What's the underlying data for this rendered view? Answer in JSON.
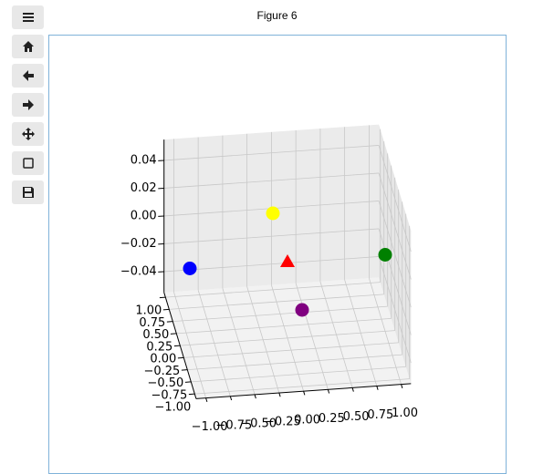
{
  "window": {
    "title": "Figure 6"
  },
  "chart_data": {
    "type": "scatter3d",
    "points": {
      "x": [
        -1,
        0,
        1,
        0,
        0
      ],
      "y": [
        0,
        1,
        0,
        -1,
        0
      ],
      "z": [
        0,
        0,
        0,
        0,
        0
      ],
      "colors": [
        "blue",
        "yellow",
        "green",
        "purple",
        "red"
      ],
      "markers": [
        "o",
        "o",
        "o",
        "o",
        "^"
      ]
    },
    "xlim": [
      -1.1,
      1.1
    ],
    "ylim": [
      -1.1,
      1.1
    ],
    "zlim": [
      -0.055,
      0.055
    ],
    "xticks": [
      {
        "value": -1,
        "label": "−1.00"
      },
      {
        "value": -0.75,
        "label": "−0.75"
      },
      {
        "value": -0.5,
        "label": "−0.50"
      },
      {
        "value": -0.25,
        "label": "−0.25"
      },
      {
        "value": 0,
        "label": "0.00"
      },
      {
        "value": 0.25,
        "label": "0.25"
      },
      {
        "value": 0.5,
        "label": "0.50"
      },
      {
        "value": 0.75,
        "label": "0.75"
      },
      {
        "value": 1,
        "label": "1.00"
      }
    ],
    "yticks": [
      {
        "value": -1,
        "label": "−1.00"
      },
      {
        "value": -0.75,
        "label": "−0.75"
      },
      {
        "value": -0.5,
        "label": "−0.50"
      },
      {
        "value": -0.25,
        "label": "−0.25"
      },
      {
        "value": 0,
        "label": "0.00"
      },
      {
        "value": 0.25,
        "label": "0.25"
      },
      {
        "value": 0.5,
        "label": "0.50"
      },
      {
        "value": 0.75,
        "label": "0.75"
      },
      {
        "value": 1,
        "label": "1.00"
      }
    ],
    "zticks": [
      {
        "value": -0.04,
        "label": "−0.04"
      },
      {
        "value": -0.02,
        "label": "−0.02"
      },
      {
        "value": 0,
        "label": "0.00"
      },
      {
        "value": 0.02,
        "label": "0.02"
      },
      {
        "value": 0.04,
        "label": "0.04"
      }
    ],
    "grid": true
  }
}
